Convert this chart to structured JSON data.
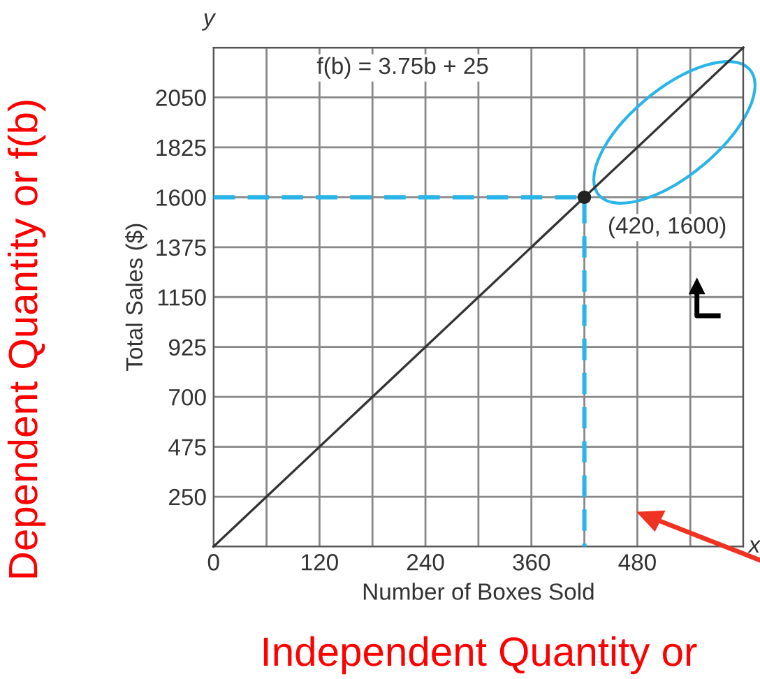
{
  "chart_data": {
    "type": "line",
    "xlabel": "Number of Boxes Sold",
    "ylabel": "Total Sales ($)",
    "xlim": [
      0,
      600
    ],
    "ylim": [
      25,
      2275
    ],
    "xticks": [
      0,
      {
        "value": 60,
        "label": null
      },
      120,
      {
        "value": 180,
        "label": null
      },
      240,
      {
        "value": 300,
        "label": null
      },
      360,
      {
        "value": 420,
        "label": null
      },
      480,
      {
        "value": 540,
        "label": null
      },
      {
        "value": 600,
        "label": null
      }
    ],
    "yticks": [
      {
        "value": 25,
        "label": null
      },
      250,
      475,
      700,
      925,
      1150,
      1375,
      1600,
      1825,
      2050,
      {
        "value": 2275,
        "label": null
      }
    ],
    "grid": true,
    "legend": false,
    "series": [
      {
        "color": "#29b5e8",
        "line_style": "dashed",
        "x": [
          0,
          420,
          420
        ],
        "values": [
          1600,
          1600,
          25
        ]
      },
      {
        "color": "#333333",
        "line_style": "solid",
        "x": [
          0,
          600
        ],
        "values": [
          25,
          2275
        ]
      },
      {
        "type": "scatter",
        "color": "#222222",
        "marker": "circle",
        "x": [
          420
        ],
        "values": [
          1600
        ]
      }
    ],
    "annotations": [
      {
        "text": "(420, 1600)",
        "x": 420,
        "y": 1600
      },
      "f(b) = 3.75b + 25",
      "y",
      "x",
      "Dependent Quantity or f(b)",
      "Independent Quantity or"
    ]
  }
}
